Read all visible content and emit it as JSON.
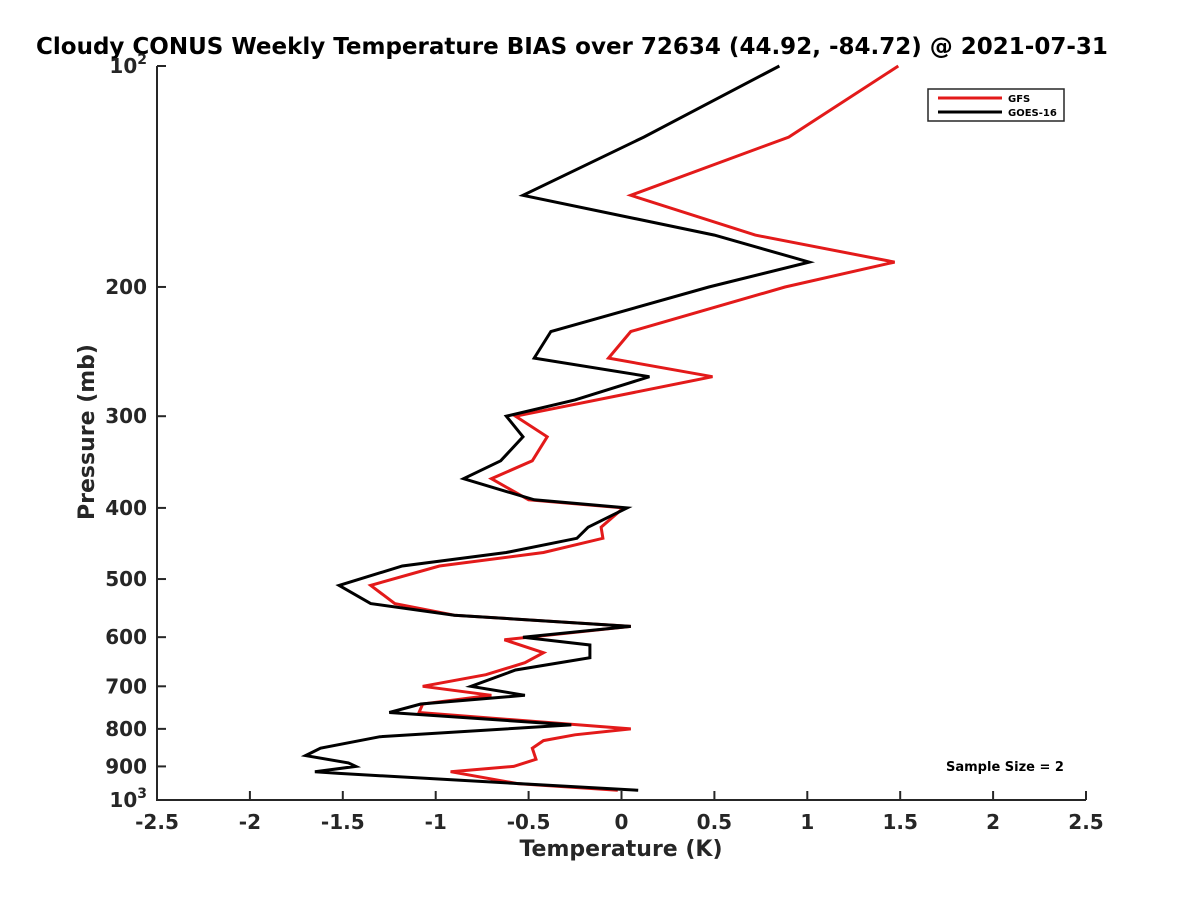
{
  "chart_data": {
    "type": "line",
    "title": "Cloudy CONUS Weekly Temperature BIAS over 72634 (44.92, -84.72) @ 2021-07-31",
    "xlabel": "Temperature (K)",
    "ylabel": "Pressure (mb)",
    "xlim": [
      -2.5,
      2.5
    ],
    "ylim": [
      100,
      1000
    ],
    "y_scale": "log",
    "y_reversed": true,
    "grid": false,
    "legend_position": "top-right",
    "x_ticks": [
      {
        "value": -2.5,
        "label": "-2.5"
      },
      {
        "value": -2,
        "label": "-2"
      },
      {
        "value": -1.5,
        "label": "-1.5"
      },
      {
        "value": -1,
        "label": "-1"
      },
      {
        "value": -0.5,
        "label": "-0.5"
      },
      {
        "value": 0,
        "label": "0"
      },
      {
        "value": 0.5,
        "label": "0.5"
      },
      {
        "value": 1,
        "label": "1"
      },
      {
        "value": 1.5,
        "label": "1.5"
      },
      {
        "value": 2,
        "label": "2"
      },
      {
        "value": 2.5,
        "label": "2.5"
      }
    ],
    "y_ticks": [
      {
        "value": 100,
        "label": "10",
        "sup": "2"
      },
      {
        "value": 200,
        "label": "200"
      },
      {
        "value": 300,
        "label": "300"
      },
      {
        "value": 400,
        "label": "400"
      },
      {
        "value": 500,
        "label": "500"
      },
      {
        "value": 600,
        "label": "600"
      },
      {
        "value": 700,
        "label": "700"
      },
      {
        "value": 800,
        "label": "800"
      },
      {
        "value": 900,
        "label": "900"
      },
      {
        "value": 1000,
        "label": "10",
        "sup": "3"
      }
    ],
    "series": [
      {
        "name": "GFS",
        "color": "#e31a1a",
        "points": [
          [
            1.49,
            100
          ],
          [
            0.9,
            125
          ],
          [
            0.05,
            150
          ],
          [
            0.72,
            170
          ],
          [
            1.47,
            185
          ],
          [
            0.88,
            200
          ],
          [
            0.05,
            230
          ],
          [
            -0.07,
            250
          ],
          [
            0.49,
            265
          ],
          [
            -0.57,
            300
          ],
          [
            -0.4,
            320
          ],
          [
            -0.48,
            345
          ],
          [
            -0.7,
            365
          ],
          [
            -0.5,
            390
          ],
          [
            0.01,
            400
          ],
          [
            -0.11,
            425
          ],
          [
            -0.1,
            440
          ],
          [
            -0.42,
            460
          ],
          [
            -0.98,
            480
          ],
          [
            -1.35,
            510
          ],
          [
            -1.22,
            540
          ],
          [
            -0.9,
            560
          ],
          [
            0.05,
            580
          ],
          [
            -0.63,
            605
          ],
          [
            -0.42,
            630
          ],
          [
            -0.52,
            650
          ],
          [
            -0.73,
            675
          ],
          [
            -1.07,
            700
          ],
          [
            -0.7,
            720
          ],
          [
            -1.07,
            740
          ],
          [
            -1.09,
            760
          ],
          [
            0.05,
            800
          ],
          [
            -0.25,
            815
          ],
          [
            -0.42,
            830
          ],
          [
            -0.48,
            850
          ],
          [
            -0.46,
            880
          ],
          [
            -0.58,
            900
          ],
          [
            -0.92,
            915
          ],
          [
            -0.56,
            950
          ],
          [
            -0.02,
            970
          ]
        ]
      },
      {
        "name": "GOES-16",
        "color": "#000000",
        "points": [
          [
            0.85,
            100
          ],
          [
            0.12,
            125
          ],
          [
            -0.53,
            150
          ],
          [
            0.5,
            170
          ],
          [
            1.01,
            185
          ],
          [
            0.47,
            200
          ],
          [
            -0.38,
            230
          ],
          [
            -0.47,
            250
          ],
          [
            0.15,
            265
          ],
          [
            -0.25,
            285
          ],
          [
            -0.62,
            300
          ],
          [
            -0.53,
            320
          ],
          [
            -0.65,
            345
          ],
          [
            -0.85,
            365
          ],
          [
            -0.47,
            390
          ],
          [
            0.03,
            400
          ],
          [
            -0.18,
            425
          ],
          [
            -0.24,
            440
          ],
          [
            -0.62,
            460
          ],
          [
            -1.18,
            480
          ],
          [
            -1.52,
            510
          ],
          [
            -1.35,
            540
          ],
          [
            -0.9,
            560
          ],
          [
            0.05,
            580
          ],
          [
            -0.53,
            600
          ],
          [
            -0.17,
            615
          ],
          [
            -0.17,
            640
          ],
          [
            -0.57,
            665
          ],
          [
            -0.81,
            700
          ],
          [
            -0.52,
            720
          ],
          [
            -1.08,
            740
          ],
          [
            -1.25,
            760
          ],
          [
            -0.27,
            790
          ],
          [
            -1.3,
            820
          ],
          [
            -1.62,
            850
          ],
          [
            -1.7,
            870
          ],
          [
            -1.47,
            890
          ],
          [
            -1.43,
            900
          ],
          [
            -1.65,
            915
          ],
          [
            -1.52,
            920
          ],
          [
            0.09,
            970
          ]
        ]
      }
    ],
    "annotation": "Sample Size = 2"
  }
}
